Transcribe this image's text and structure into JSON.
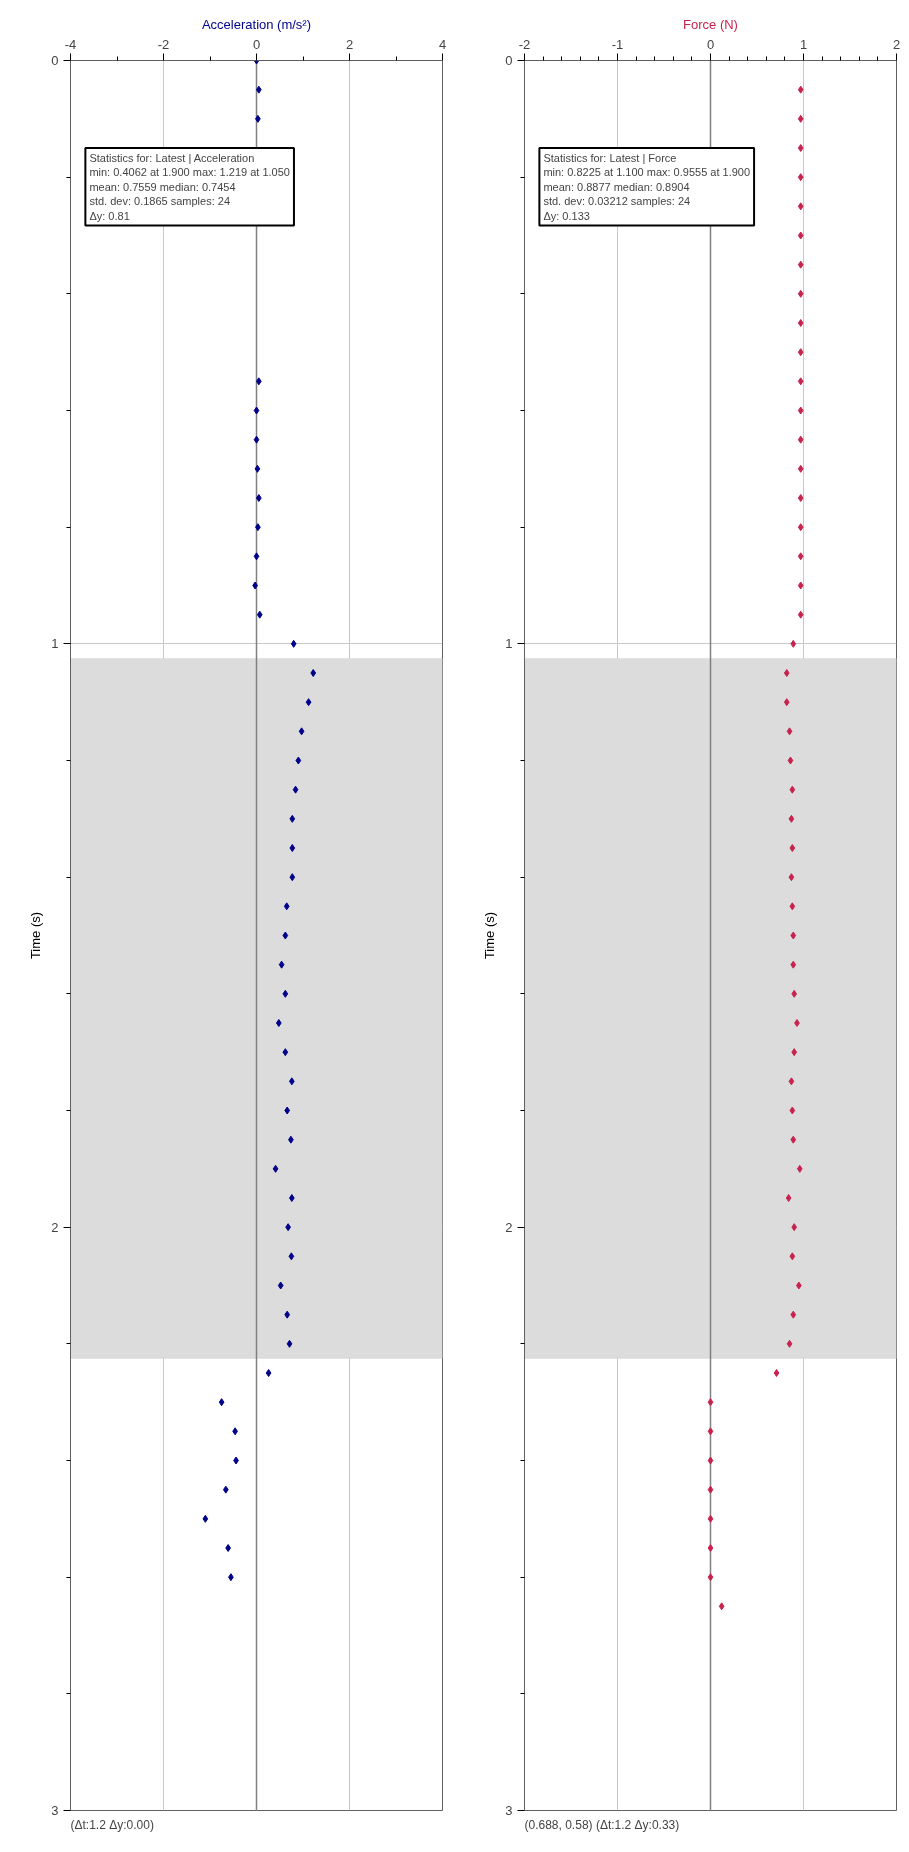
{
  "chart_data": [
    {
      "type": "scatter",
      "orientation": "horizontal",
      "xlabel": "Acceleration (m/s²)",
      "ylabel": "Time (s)",
      "marker": "diamond",
      "grid": true,
      "x": [
        0,
        0.05,
        0.1,
        0.15,
        0.2,
        0.25,
        0.3,
        0.35,
        0.4,
        0.45,
        0.5,
        0.55,
        0.6,
        0.65,
        0.7,
        0.75,
        0.8,
        0.85,
        0.9,
        0.95,
        1.0,
        1.05,
        1.1,
        1.15,
        1.2,
        1.25,
        1.3,
        1.35,
        1.4,
        1.45,
        1.5,
        1.55,
        1.6,
        1.65,
        1.7,
        1.75,
        1.8,
        1.85,
        1.9,
        1.95,
        2.0,
        2.05,
        2.1,
        2.15,
        2.2,
        2.25,
        2.3,
        2.35,
        2.4,
        2.45,
        2.5,
        2.55,
        2.6
      ],
      "values": [
        0,
        0.05,
        0.03,
        null,
        null,
        null,
        null,
        null,
        null,
        null,
        null,
        0.05,
        0,
        0,
        0.02,
        0.05,
        0.03,
        0,
        -0.03,
        0.07,
        0.8,
        1.22,
        1.12,
        0.97,
        0.9,
        0.84,
        0.77,
        0.77,
        0.77,
        0.65,
        0.62,
        0.54,
        0.62,
        0.48,
        0.62,
        0.76,
        0.66,
        0.74,
        0.41,
        0.76,
        0.68,
        0.75,
        0.52,
        0.66,
        0.71,
        0.26,
        -0.75,
        -0.46,
        -0.44,
        -0.66,
        -1.1,
        -0.61,
        -0.55
      ],
      "color": "#00008b",
      "xlim": [
        -4,
        4
      ],
      "xticks": [
        -4,
        {
          "value": -3,
          "label": null
        },
        -2,
        {
          "value": -1,
          "label": null
        },
        0,
        {
          "value": 1,
          "label": null
        },
        2,
        {
          "value": 3,
          "label": null
        },
        4
      ],
      "ylim": [
        3,
        0
      ],
      "yticks": [
        0,
        {
          "value": 0.2,
          "label": null
        },
        {
          "value": 0.4,
          "label": null
        },
        {
          "value": 0.6,
          "label": null
        },
        {
          "value": 0.8,
          "label": null
        },
        1,
        {
          "value": 1.2,
          "label": null
        },
        {
          "value": 1.4,
          "label": null
        },
        {
          "value": 1.6,
          "label": null
        },
        {
          "value": 1.8,
          "label": null
        },
        2,
        {
          "value": 2.2,
          "label": null
        },
        {
          "value": 2.4,
          "label": null
        },
        {
          "value": 2.6,
          "label": null
        },
        {
          "value": 2.8,
          "label": null
        },
        3
      ],
      "ref_lines": [
        {
          "axis": "x",
          "value": 0,
          "color": "#808080"
        }
      ],
      "bands": [
        {
          "axis": "y",
          "from": 1.025,
          "to": 2.225,
          "color": "#dcdcdc"
        }
      ],
      "annotations": [
        "Statistics for: Latest | Acceleration\nmin: 0.4062 at 1.900 max: 1.219 at 1.050\nmean: 0.7559 median: 0.7454\nstd. dev: 0.1865 samples: 24\nΔy: 0.81",
        "(Δt:1.2 Δy:0.00)"
      ]
    },
    {
      "type": "scatter",
      "orientation": "horizontal",
      "xlabel": "Force (N)",
      "ylabel": "Time (s)",
      "marker": "diamond",
      "grid": true,
      "x": [
        0.05,
        0.1,
        0.15,
        0.2,
        0.25,
        0.3,
        0.35,
        0.4,
        0.45,
        0.5,
        0.55,
        0.6,
        0.65,
        0.7,
        0.75,
        0.8,
        0.85,
        0.9,
        0.95,
        1.0,
        1.05,
        1.1,
        1.15,
        1.2,
        1.25,
        1.3,
        1.35,
        1.4,
        1.45,
        1.5,
        1.55,
        1.6,
        1.65,
        1.7,
        1.75,
        1.8,
        1.85,
        1.9,
        1.95,
        2.0,
        2.05,
        2.1,
        2.15,
        2.2,
        2.25,
        2.3,
        2.35,
        2.4,
        2.45,
        2.5,
        2.55,
        2.6,
        2.65
      ],
      "values": [
        0.97,
        0.97,
        0.97,
        0.97,
        0.97,
        0.97,
        0.97,
        0.97,
        0.97,
        0.97,
        0.97,
        0.97,
        0.97,
        0.97,
        0.97,
        0.97,
        0.97,
        0.97,
        0.97,
        0.89,
        0.82,
        0.82,
        0.85,
        0.86,
        0.88,
        0.87,
        0.88,
        0.87,
        0.88,
        0.89,
        0.89,
        0.9,
        0.93,
        0.9,
        0.87,
        0.88,
        0.89,
        0.96,
        0.84,
        0.9,
        0.88,
        0.95,
        0.89,
        0.85,
        0.71,
        0,
        0,
        0,
        0,
        0,
        0,
        0,
        0.12
      ],
      "color": "#c8234f",
      "xlim": [
        -2,
        2
      ],
      "xticks": [
        -2,
        {
          "value": -1.8,
          "label": null
        },
        {
          "value": -1.6,
          "label": null
        },
        {
          "value": -1.4,
          "label": null
        },
        {
          "value": -1.2,
          "label": null
        },
        -1,
        {
          "value": -0.8,
          "label": null
        },
        {
          "value": -0.6,
          "label": null
        },
        {
          "value": -0.4,
          "label": null
        },
        {
          "value": -0.2,
          "label": null
        },
        0,
        {
          "value": 0.2,
          "label": null
        },
        {
          "value": 0.4,
          "label": null
        },
        {
          "value": 0.6,
          "label": null
        },
        {
          "value": 0.8,
          "label": null
        },
        1,
        {
          "value": 1.2,
          "label": null
        },
        {
          "value": 1.4,
          "label": null
        },
        {
          "value": 1.6,
          "label": null
        },
        {
          "value": 1.8,
          "label": null
        },
        2
      ],
      "ylim": [
        3,
        0
      ],
      "yticks": [
        0,
        {
          "value": 0.2,
          "label": null
        },
        {
          "value": 0.4,
          "label": null
        },
        {
          "value": 0.6,
          "label": null
        },
        {
          "value": 0.8,
          "label": null
        },
        1,
        {
          "value": 1.2,
          "label": null
        },
        {
          "value": 1.4,
          "label": null
        },
        {
          "value": 1.6,
          "label": null
        },
        {
          "value": 1.8,
          "label": null
        },
        2,
        {
          "value": 2.2,
          "label": null
        },
        {
          "value": 2.4,
          "label": null
        },
        {
          "value": 2.6,
          "label": null
        },
        {
          "value": 2.8,
          "label": null
        },
        3
      ],
      "ref_lines": [
        {
          "axis": "x",
          "value": 0,
          "color": "#808080"
        }
      ],
      "bands": [
        {
          "axis": "y",
          "from": 1.025,
          "to": 2.225,
          "color": "#dcdcdc"
        }
      ],
      "annotations": [
        "Statistics for: Latest | Force\nmin: 0.8225 at 1.100 max: 0.9555 at 1.900\nmean: 0.8877 median: 0.8904\nstd. dev: 0.03212 samples: 24\nΔy: 0.133",
        "(0.688, 0.58) (Δt:1.2 Δy:0.33)"
      ]
    }
  ]
}
